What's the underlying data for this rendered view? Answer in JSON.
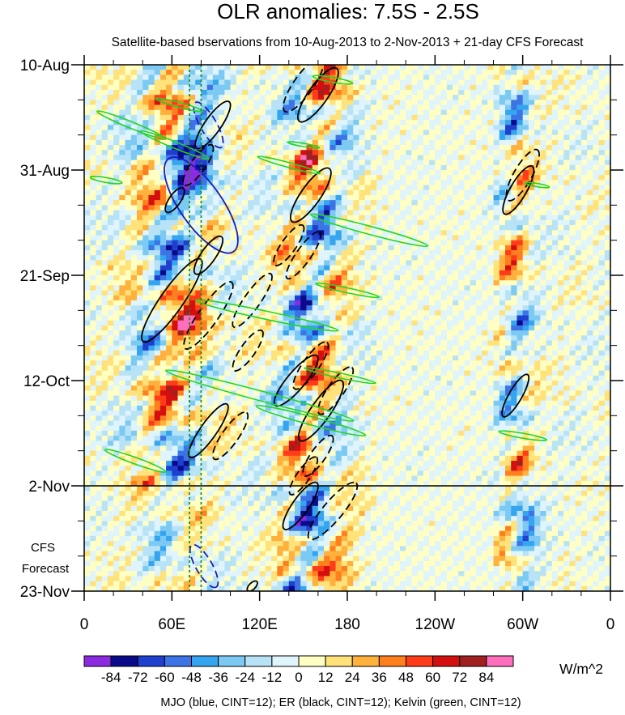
{
  "chart_data": {
    "type": "heatmap",
    "title": "OLR anomalies: 7.5S - 2.5S",
    "subtitle": "Satellite-based bservations from 10-Aug-2013 to 2-Nov-2013 + 21-day CFS Forecast",
    "xlabel": "",
    "ylabel": "",
    "x_ticks": [
      {
        "lon": 0,
        "label": "0"
      },
      {
        "lon": 60,
        "label": "60E"
      },
      {
        "lon": 120,
        "label": "120E"
      },
      {
        "lon": 180,
        "label": "180"
      },
      {
        "lon": 240,
        "label": "120W"
      },
      {
        "lon": 300,
        "label": "60W"
      },
      {
        "lon": 360,
        "label": "0"
      }
    ],
    "y_ticks": [
      {
        "day": 0,
        "label": "10-Aug"
      },
      {
        "day": 21,
        "label": "31-Aug"
      },
      {
        "day": 42,
        "label": "21-Sep"
      },
      {
        "day": 63,
        "label": "12-Oct"
      },
      {
        "day": 84,
        "label": "2-Nov"
      },
      {
        "day": 105,
        "label": "23-Nov"
      }
    ],
    "xlim": [
      0,
      360
    ],
    "ylim_days": [
      0,
      105
    ],
    "observation_end_day": 84,
    "forecast_label_1": "CFS",
    "forecast_label_2": "Forecast",
    "colorbar": {
      "levels": [
        "-84",
        "-72",
        "-60",
        "-48",
        "-36",
        "-24",
        "-12",
        "0",
        "12",
        "24",
        "36",
        "48",
        "60",
        "72",
        "84"
      ],
      "colors": [
        "#8a2be2",
        "#0a0a8a",
        "#1f3fcf",
        "#3c74e6",
        "#36a5ef",
        "#7ccaf4",
        "#b8e3f7",
        "#dff4fb",
        "#ffffc4",
        "#ffe27a",
        "#ffb13d",
        "#ff7f1e",
        "#ff3c1a",
        "#d40f0f",
        "#a02020",
        "#ff6fbe"
      ],
      "units": "W/m^2"
    },
    "caption": "MJO (blue, CINT=12); ER (black, CINT=12); Kelvin (green, CINT=12)",
    "series": [
      {
        "name": "MJO",
        "color": "#1a1ab8"
      },
      {
        "name": "ER",
        "color": "#000000"
      },
      {
        "name": "Kelvin",
        "color": "#22d622"
      }
    ],
    "reference_lines": [
      {
        "lon": 72,
        "color": "#1a8a1a"
      },
      {
        "lon": 80,
        "color": "#1a8a1a"
      }
    ]
  }
}
